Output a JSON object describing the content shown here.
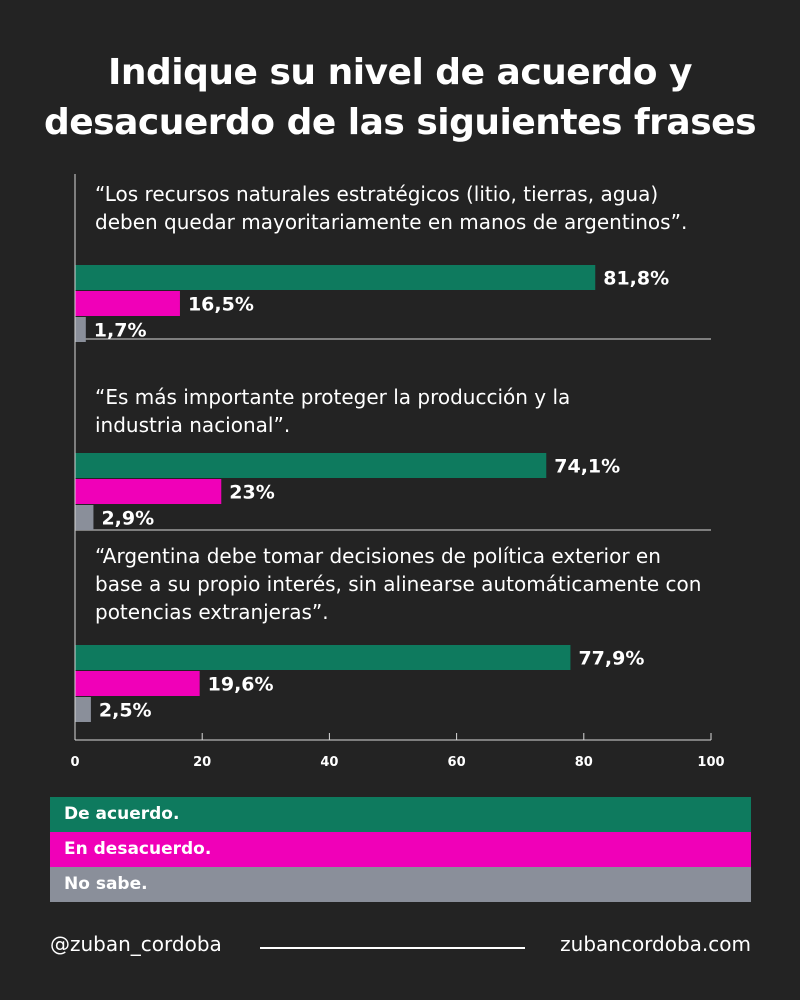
{
  "title": {
    "line1": "Indique su nivel de acuerdo y",
    "line2": "desacuerdo de las siguientes frases"
  },
  "chart_data": {
    "type": "bar",
    "orientation": "horizontal",
    "xlim": [
      0,
      100
    ],
    "x_ticks": [
      "0",
      "20",
      "40",
      "60",
      "80",
      "100"
    ],
    "categories": [
      {
        "lines": [
          "“Los recursos naturales estratégicos (litio, tierras, agua)",
          "deben quedar mayoritariamente en manos de argentinos”."
        ],
        "values": [
          81.8,
          16.5,
          1.7
        ],
        "labels": [
          "81,8%",
          "16,5%",
          "1,7%"
        ]
      },
      {
        "lines": [
          "“Es más importante proteger la producción y la",
          "industria nacional”."
        ],
        "values": [
          74.1,
          23,
          2.9
        ],
        "labels": [
          "74,1%",
          "23%",
          "2,9%"
        ]
      },
      {
        "lines": [
          "“Argentina debe tomar decisiones de política exterior en",
          "base a su propio interés, sin alinearse automáticamente con",
          "potencias extranjeras”."
        ],
        "values": [
          77.9,
          19.6,
          2.5
        ],
        "labels": [
          "77,9%",
          "19,6%",
          "2,5%"
        ]
      }
    ],
    "series": [
      {
        "name": "De acuerdo.",
        "color": "#0e7a5e"
      },
      {
        "name": "En desacuerdo.",
        "color": "#f000b8"
      },
      {
        "name": "No sabe.",
        "color": "#8a8f9a"
      }
    ]
  },
  "footer": {
    "handle": "@zuban_cordoba",
    "site": "zubancordoba.com"
  }
}
